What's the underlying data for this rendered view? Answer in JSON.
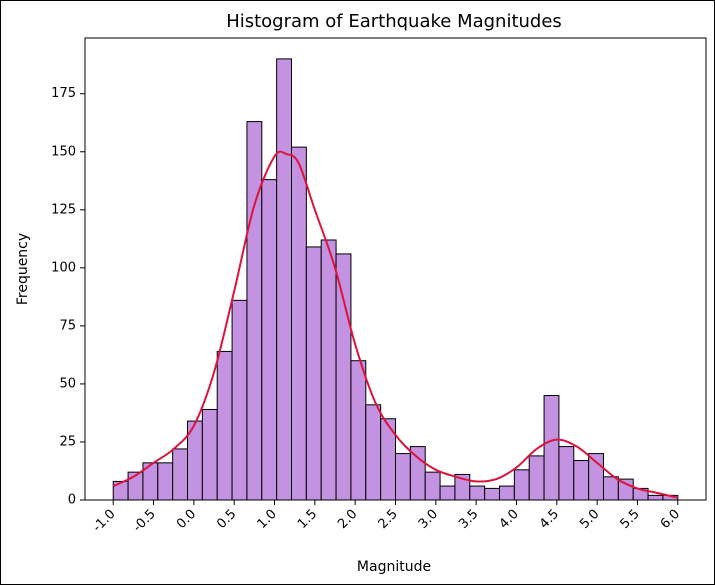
{
  "chart_data": {
    "type": "bar",
    "title": "Histogram of Earthquake Magnitudes",
    "xlabel": "Magnitude",
    "ylabel": "Frequency",
    "xlim": [
      -1.35,
      6.35
    ],
    "ylim": [
      0,
      199
    ],
    "grid": false,
    "colors": {
      "bar_fill": "#c392e0",
      "bar_edge": "#000000",
      "kde_line": "#dc143c",
      "axes": "#000000",
      "background": "#ffffff"
    },
    "x_ticks": [
      -1.0,
      -0.5,
      0.0,
      0.5,
      1.0,
      1.5,
      2.0,
      2.5,
      3.0,
      3.5,
      4.0,
      4.5,
      5.0,
      5.5,
      6.0
    ],
    "x_tick_labels": [
      "-1.0",
      "-0.5",
      "0.0",
      "0.5",
      "1.0",
      "1.5",
      "2.0",
      "2.5",
      "3.0",
      "3.5",
      "4.0",
      "4.5",
      "5.0",
      "5.5",
      "6.0"
    ],
    "y_ticks": [
      0,
      25,
      50,
      75,
      100,
      125,
      150,
      175
    ],
    "y_tick_labels": [
      "0",
      "25",
      "50",
      "75",
      "100",
      "125",
      "150",
      "175"
    ],
    "bin_edges": [
      -1.0,
      -0.8158,
      -0.6316,
      -0.4474,
      -0.2632,
      -0.0789,
      0.1053,
      0.2895,
      0.4737,
      0.6579,
      0.8421,
      1.0263,
      1.2105,
      1.3947,
      1.5789,
      1.7632,
      1.9474,
      2.1316,
      2.3158,
      2.5,
      2.6842,
      2.8684,
      3.0526,
      3.2368,
      3.4211,
      3.6053,
      3.7895,
      3.9737,
      4.1579,
      4.3421,
      4.5263,
      4.7105,
      4.8947,
      5.0789,
      5.2632,
      5.4474,
      5.6316,
      5.8158,
      6.0
    ],
    "counts": [
      8,
      12,
      16,
      16,
      22,
      34,
      39,
      64,
      86,
      163,
      138,
      190,
      152,
      109,
      112,
      106,
      60,
      41,
      35,
      20,
      23,
      12,
      6,
      11,
      6,
      5,
      6,
      13,
      19,
      45,
      23,
      17,
      20,
      10,
      9,
      5,
      2,
      2
    ],
    "kde": {
      "x": [
        -1.0,
        -0.75,
        -0.5,
        -0.25,
        0.0,
        0.25,
        0.5,
        0.75,
        1.0,
        1.15,
        1.3,
        1.5,
        1.75,
        2.0,
        2.25,
        2.5,
        2.75,
        3.0,
        3.25,
        3.5,
        3.75,
        4.0,
        4.25,
        4.5,
        4.75,
        5.0,
        5.25,
        5.5,
        5.75,
        6.0
      ],
      "y": [
        6,
        10,
        16,
        22,
        32,
        55,
        90,
        127,
        148,
        149,
        145,
        125,
        100,
        67,
        42,
        28,
        19,
        13,
        10,
        8,
        9,
        14,
        22,
        26,
        23,
        16,
        9,
        5,
        3,
        1
      ]
    }
  }
}
